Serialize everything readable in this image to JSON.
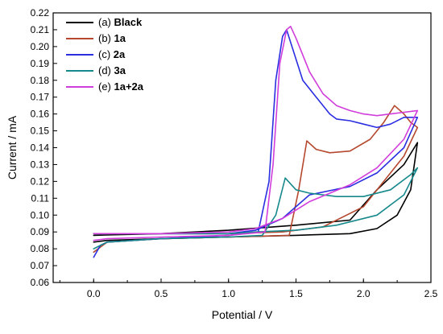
{
  "chart_data": {
    "type": "line",
    "title": "",
    "xlabel": "Potential / V",
    "ylabel": "Current / mA",
    "xlim": [
      -0.3,
      2.5
    ],
    "ylim": [
      0.06,
      0.22
    ],
    "x_ticks": [
      0.0,
      0.5,
      1.0,
      1.5,
      2.0,
      2.5
    ],
    "y_ticks": [
      0.06,
      0.07,
      0.08,
      0.09,
      0.1,
      0.11,
      0.12,
      0.13,
      0.14,
      0.15,
      0.16,
      0.17,
      0.18,
      0.19,
      0.2,
      0.21,
      0.22
    ],
    "grid": false,
    "legend_position": "top-left",
    "series": [
      {
        "name": "(a) Black",
        "legend_prefix": "(a)",
        "legend_bold": "Black",
        "color": "#000000",
        "x": [
          0.0,
          0.1,
          0.5,
          1.0,
          1.5,
          1.9,
          2.1,
          2.25,
          2.35,
          2.4,
          2.4,
          2.3,
          2.1,
          1.9,
          1.5,
          1.0,
          0.5,
          0.0
        ],
        "y": [
          0.084,
          0.085,
          0.086,
          0.087,
          0.088,
          0.089,
          0.092,
          0.1,
          0.115,
          0.143,
          0.143,
          0.13,
          0.115,
          0.097,
          0.094,
          0.091,
          0.089,
          0.088
        ]
      },
      {
        "name": "(b) 1a",
        "legend_prefix": "(b)",
        "legend_bold": "1a",
        "color": "#b5482e",
        "x": [
          0.0,
          0.1,
          0.5,
          1.0,
          1.45,
          1.52,
          1.58,
          1.65,
          1.75,
          1.9,
          2.05,
          2.15,
          2.23,
          2.3,
          2.35,
          2.4,
          2.4,
          2.3,
          2.0,
          1.7,
          1.4,
          1.0,
          0.5,
          0.0
        ],
        "y": [
          0.078,
          0.084,
          0.086,
          0.087,
          0.088,
          0.115,
          0.144,
          0.139,
          0.137,
          0.138,
          0.145,
          0.155,
          0.165,
          0.16,
          0.155,
          0.152,
          0.152,
          0.135,
          0.105,
          0.093,
          0.09,
          0.089,
          0.089,
          0.089
        ]
      },
      {
        "name": "(c) 2a",
        "legend_prefix": "(c)",
        "legend_bold": "2a",
        "color": "#2a2ee0",
        "x": [
          0.0,
          0.05,
          0.1,
          0.5,
          1.0,
          1.22,
          1.3,
          1.35,
          1.4,
          1.43,
          1.47,
          1.55,
          1.65,
          1.75,
          1.8,
          1.9,
          2.0,
          2.1,
          2.2,
          2.3,
          2.4,
          2.4,
          2.3,
          2.1,
          1.9,
          1.6,
          1.4,
          1.2,
          1.0,
          0.5,
          0.0
        ],
        "y": [
          0.075,
          0.082,
          0.084,
          0.086,
          0.088,
          0.09,
          0.12,
          0.18,
          0.206,
          0.21,
          0.2,
          0.18,
          0.17,
          0.16,
          0.157,
          0.156,
          0.154,
          0.152,
          0.154,
          0.158,
          0.158,
          0.158,
          0.14,
          0.125,
          0.117,
          0.112,
          0.098,
          0.091,
          0.089,
          0.089,
          0.089
        ]
      },
      {
        "name": "(d) 3a",
        "legend_prefix": "(d)",
        "legend_bold": "3a",
        "color": "#17898d",
        "x": [
          0.0,
          0.1,
          0.5,
          1.0,
          1.25,
          1.35,
          1.42,
          1.5,
          1.6,
          1.8,
          2.0,
          2.2,
          2.35,
          2.4,
          2.4,
          2.3,
          2.1,
          1.8,
          1.5,
          1.2,
          1.0,
          0.5,
          0.0
        ],
        "y": [
          0.08,
          0.084,
          0.086,
          0.087,
          0.088,
          0.1,
          0.122,
          0.115,
          0.113,
          0.111,
          0.111,
          0.115,
          0.124,
          0.128,
          0.128,
          0.112,
          0.1,
          0.094,
          0.091,
          0.09,
          0.089,
          0.089,
          0.089
        ]
      },
      {
        "name": "(e) 1a+2a",
        "legend_prefix": "(e)",
        "legend_bold": "1a+2a",
        "color": "#d13ddb",
        "x": [
          0.0,
          0.1,
          0.5,
          1.0,
          1.27,
          1.33,
          1.38,
          1.43,
          1.46,
          1.5,
          1.6,
          1.7,
          1.8,
          1.9,
          2.0,
          2.1,
          2.2,
          2.3,
          2.4,
          2.4,
          2.3,
          2.1,
          1.9,
          1.6,
          1.4,
          1.2,
          1.0,
          0.5,
          0.0
        ],
        "y": [
          0.085,
          0.086,
          0.087,
          0.088,
          0.09,
          0.13,
          0.19,
          0.21,
          0.212,
          0.205,
          0.185,
          0.172,
          0.165,
          0.162,
          0.16,
          0.159,
          0.16,
          0.161,
          0.162,
          0.162,
          0.145,
          0.128,
          0.118,
          0.108,
          0.098,
          0.092,
          0.09,
          0.089,
          0.089
        ]
      }
    ]
  }
}
